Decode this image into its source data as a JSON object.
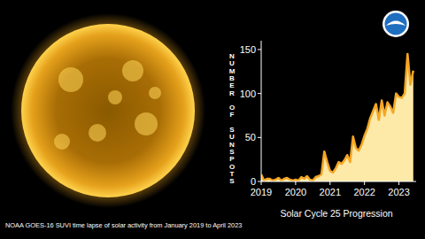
{
  "chart_data": {
    "type": "area",
    "title": "Solar Cycle 25 Progression",
    "y_label": "NUMBER OF SUNSPOTS",
    "caption": "NOAA GOES-16 SUVI time lapse of solar activity from January 2019 to April 2023",
    "x": [
      2019.0,
      2019.083,
      2019.167,
      2019.25,
      2019.333,
      2019.417,
      2019.5,
      2019.583,
      2019.667,
      2019.75,
      2019.833,
      2019.917,
      2020.0,
      2020.083,
      2020.167,
      2020.25,
      2020.333,
      2020.417,
      2020.5,
      2020.583,
      2020.667,
      2020.75,
      2020.833,
      2020.917,
      2021.0,
      2021.083,
      2021.167,
      2021.25,
      2021.333,
      2021.417,
      2021.5,
      2021.583,
      2021.667,
      2021.75,
      2021.833,
      2021.917,
      2022.0,
      2022.083,
      2022.167,
      2022.25,
      2022.333,
      2022.417,
      2022.5,
      2022.583,
      2022.667,
      2022.75,
      2022.833,
      2022.917,
      2023.0,
      2023.083,
      2023.167,
      2023.25,
      2023.333,
      2023.417
    ],
    "values": [
      8,
      1,
      3,
      3,
      1,
      2,
      4,
      1,
      3,
      4,
      2,
      1,
      2,
      1,
      5,
      3,
      6,
      2,
      1,
      5,
      6,
      8,
      34,
      22,
      12,
      10,
      15,
      22,
      20,
      24,
      30,
      22,
      51,
      38,
      35,
      42,
      52,
      60,
      72,
      80,
      88,
      70,
      92,
      75,
      90,
      85,
      78,
      100,
      96,
      95,
      100,
      145,
      110,
      126
    ],
    "color": "#f5a623",
    "xlim": [
      2019,
      2023.5
    ],
    "xticks": [
      2019,
      2020,
      2021,
      2022,
      2023
    ],
    "ylim": [
      0,
      160
    ],
    "yticks": [
      0,
      50,
      100,
      150
    ],
    "grid": false
  }
}
